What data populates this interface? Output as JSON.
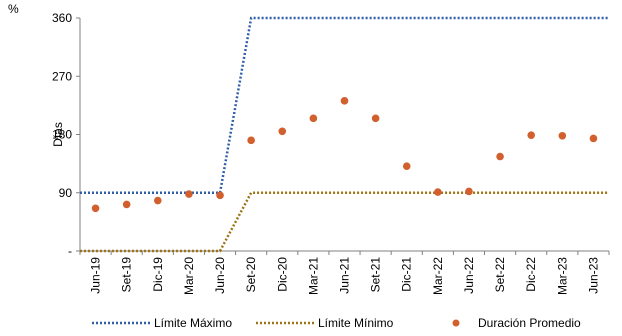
{
  "corner_label": "%",
  "chart_data": {
    "type": "line",
    "ylabel": "Días",
    "yticks": [
      {
        "value": 0,
        "label": "-"
      },
      {
        "value": 90,
        "label": "90"
      },
      {
        "value": 180,
        "label": "180"
      },
      {
        "value": 270,
        "label": "270"
      },
      {
        "value": 360,
        "label": "360"
      }
    ],
    "ylim": [
      0,
      360
    ],
    "categories": [
      "Jun-19",
      "Set-19",
      "Dic-19",
      "Mar-20",
      "Jun-20",
      "Set-20",
      "Dic-20",
      "Mar-21",
      "Jun-21",
      "Set-21",
      "Dic-21",
      "Mar-22",
      "Jun-22",
      "Set-22",
      "Dic-22",
      "Mar-23",
      "Jun-23"
    ],
    "series": [
      {
        "name": "Límite Máximo",
        "style": "dotted-line",
        "color": "#2e5fa8",
        "values": [
          90,
          90,
          90,
          90,
          90,
          360,
          360,
          360,
          360,
          360,
          360,
          360,
          360,
          360,
          360,
          360,
          360
        ]
      },
      {
        "name": "Límite Mínimo",
        "style": "dotted-line",
        "color": "#9c7415",
        "values": [
          0,
          0,
          0,
          0,
          0,
          90,
          90,
          90,
          90,
          90,
          90,
          90,
          90,
          90,
          90,
          90,
          90
        ]
      },
      {
        "name": "Duración Promedio",
        "style": "markers",
        "color": "#d2602e",
        "values": [
          66,
          72,
          78,
          88,
          86,
          171,
          185,
          205,
          232,
          205,
          131,
          91,
          92,
          146,
          179,
          178,
          174
        ]
      }
    ],
    "grid": false,
    "legend": "bottom"
  }
}
